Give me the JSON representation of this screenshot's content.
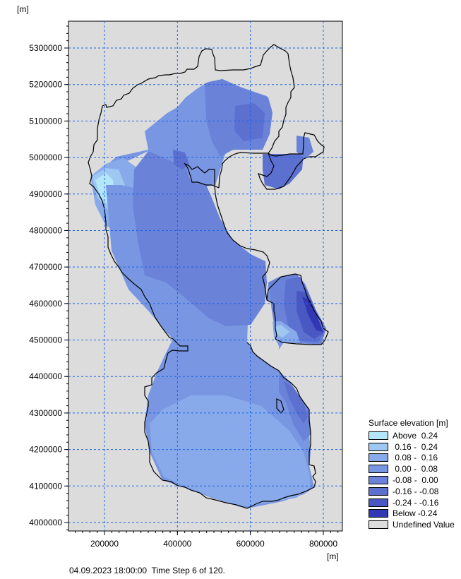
{
  "map": {
    "y_unit": "[m]",
    "x_unit": "[m]",
    "x_range": [
      100000,
      850000
    ],
    "y_range": [
      3975000,
      5375000
    ],
    "x_ticks": [
      {
        "value": 200000,
        "label": "200000"
      },
      {
        "value": 400000,
        "label": "400000"
      },
      {
        "value": 600000,
        "label": "600000"
      },
      {
        "value": 800000,
        "label": "800000"
      }
    ],
    "y_ticks": [
      {
        "value": 4000000,
        "label": "4000000"
      },
      {
        "value": 4100000,
        "label": "4100000"
      },
      {
        "value": 4200000,
        "label": "4200000"
      },
      {
        "value": 4300000,
        "label": "4300000"
      },
      {
        "value": 4400000,
        "label": "4400000"
      },
      {
        "value": 4500000,
        "label": "4500000"
      },
      {
        "value": 4600000,
        "label": "4600000"
      },
      {
        "value": 4700000,
        "label": "4700000"
      },
      {
        "value": 4800000,
        "label": "4800000"
      },
      {
        "value": 4900000,
        "label": "4900000"
      },
      {
        "value": 5000000,
        "label": "5000000"
      },
      {
        "value": 5100000,
        "label": "5100000"
      },
      {
        "value": 5200000,
        "label": "5200000"
      },
      {
        "value": 5300000,
        "label": "5300000"
      }
    ],
    "grid": true,
    "grid_style": "blue dashed",
    "background_color": "#dcdcdc",
    "grid_color": "#1e64e6"
  },
  "legend": {
    "title": "Surface elevation [m]",
    "items": [
      {
        "label": "Above  0.24",
        "color": "#b4e6fa"
      },
      {
        "label": " 0.16 -  0.24",
        "color": "#9ec8f2"
      },
      {
        "label": " 0.08 -  0.16",
        "color": "#88aaea"
      },
      {
        "label": " 0.00 -  0.08",
        "color": "#7896e2"
      },
      {
        "label": "-0.08 -  0.00",
        "color": "#6a82d8"
      },
      {
        "label": "-0.16 - -0.08",
        "color": "#5c70d0"
      },
      {
        "label": "-0.24 - -0.16",
        "color": "#4a58c4"
      },
      {
        "label": "Below -0.24",
        "color": "#3238b4"
      },
      {
        "label": "Undefined Value",
        "color": "#dcdcdc"
      }
    ]
  },
  "footer": {
    "status": "04.09.2023 18:00:00  Time Step 6 of 120."
  }
}
